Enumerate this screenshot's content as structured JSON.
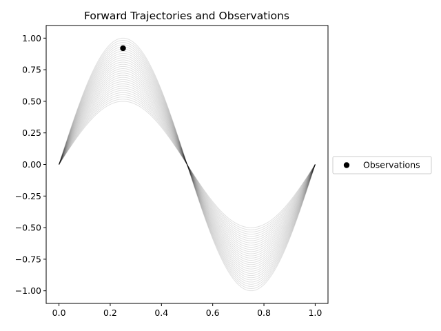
{
  "chart_data": {
    "type": "line",
    "title": "Forward Trajectories and Observations",
    "xlabel": "",
    "ylabel": "",
    "xlim": [
      -0.05,
      1.05
    ],
    "ylim": [
      -1.1,
      1.1
    ],
    "xticks": [
      0.0,
      0.2,
      0.4,
      0.6,
      0.8,
      1.0
    ],
    "xtick_labels": [
      "0.0",
      "0.2",
      "0.4",
      "0.6",
      "0.8",
      "1.0"
    ],
    "yticks": [
      1.0,
      0.75,
      0.5,
      0.25,
      0.0,
      -0.25,
      -0.5,
      -0.75,
      -1.0
    ],
    "ytick_labels": [
      "1.00",
      "0.75",
      "0.50",
      "0.25",
      "0.00",
      "−0.25",
      "−0.50",
      "−0.75",
      "−1.00"
    ],
    "grid": false,
    "legend_placement": "center-right-outside",
    "trajectories": {
      "function": "amplitude * sin(2*pi*x)",
      "x_range": [
        0.0,
        1.0
      ],
      "amplitude_min": 0.5,
      "amplitude_max": 1.0,
      "count": 30,
      "color": "#000000",
      "alpha": 0.12
    },
    "series": [
      {
        "name": "Observations",
        "type": "scatter",
        "points": [
          {
            "x": 0.25,
            "y": 0.92
          }
        ],
        "color": "#000000"
      }
    ]
  }
}
